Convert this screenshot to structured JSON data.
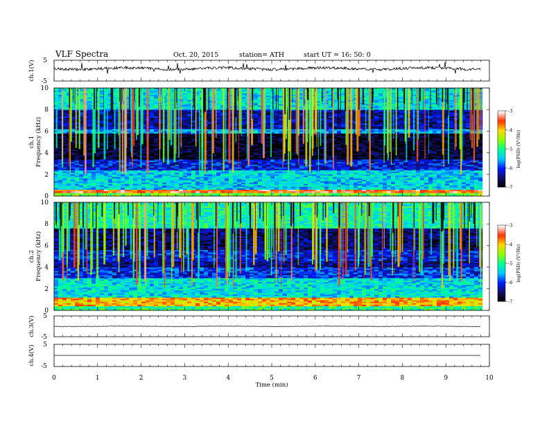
{
  "header": {
    "title": "VLF  Spectra",
    "date": "Oct. 20, 2015",
    "station": "station= ATH",
    "start_ut": "start  UT  =    16: 50: 0"
  },
  "chart_data": [
    {
      "type": "line",
      "panel": "ch1-waveform",
      "ylabel": "ch.1(V)",
      "x_range": [
        0,
        10
      ],
      "ylim": [
        -5,
        5
      ],
      "y_ticks": [
        "5",
        "-5"
      ],
      "trace": {
        "x": [
          0,
          9.8
        ],
        "baseline": 0,
        "amplitude": 0.8
      }
    },
    {
      "type": "heatmap",
      "panel": "ch1-spectrogram",
      "ylabel_top": "ch.1",
      "ylabel": "Frequency  (kHz)",
      "x_range": [
        0,
        10
      ],
      "data_x_range": [
        0,
        9.8
      ],
      "ylim": [
        0,
        10
      ],
      "y_ticks": [
        "0",
        "2",
        "4",
        "6",
        "8",
        "10"
      ],
      "colorbar_label": "log(PSD) (V²/Hz)",
      "colorbar_ticks": [
        "-3",
        "-4",
        "-5",
        "-6",
        "-7"
      ],
      "colorbar_range": [
        -7,
        -3
      ],
      "bands": [
        {
          "from": 0,
          "to": 0.3,
          "level": -4.6
        },
        {
          "from": 0.3,
          "to": 0.6,
          "level": -3.5
        },
        {
          "from": 0.6,
          "to": 2.4,
          "level": -5.4
        },
        {
          "from": 2.4,
          "to": 3.4,
          "level": -6.1
        },
        {
          "from": 3.4,
          "to": 5.8,
          "level": -6.8
        },
        {
          "from": 5.8,
          "to": 6.2,
          "level": -5.6
        },
        {
          "from": 6.2,
          "to": 8.0,
          "level": -6.3
        },
        {
          "from": 8.0,
          "to": 10,
          "level": -5.3
        }
      ]
    },
    {
      "type": "heatmap",
      "panel": "ch2-spectrogram",
      "ylabel_top": "ch.2",
      "ylabel": "Frequency  (kHz)",
      "x_range": [
        0,
        10
      ],
      "data_x_range": [
        0,
        9.8
      ],
      "ylim": [
        0,
        10
      ],
      "y_ticks": [
        "0",
        "2",
        "4",
        "6",
        "8",
        "10"
      ],
      "colorbar_label": "log(PSD) (V²/Hz)",
      "colorbar_ticks": [
        "-3",
        "-4",
        "-5",
        "-6",
        "-7"
      ],
      "colorbar_range": [
        -7,
        -3
      ],
      "bands": [
        {
          "from": 0,
          "to": 0.4,
          "level": -5.0
        },
        {
          "from": 0.4,
          "to": 1.2,
          "level": -3.9
        },
        {
          "from": 1.2,
          "to": 3.0,
          "level": -5.3
        },
        {
          "from": 3.0,
          "to": 4.0,
          "level": -6.0
        },
        {
          "from": 4.0,
          "to": 4.6,
          "level": -6.4
        },
        {
          "from": 4.6,
          "to": 5.6,
          "level": -6.1
        },
        {
          "from": 5.6,
          "to": 7.6,
          "level": -6.5
        },
        {
          "from": 7.6,
          "to": 10,
          "level": -5.1
        }
      ]
    },
    {
      "type": "line",
      "panel": "ch3-waveform",
      "ylabel": "ch.3(V)",
      "x_range": [
        0,
        10
      ],
      "ylim": [
        -5,
        5
      ],
      "y_ticks": [
        "5",
        "-5"
      ],
      "trace": {
        "x": [
          0,
          9.8
        ],
        "baseline": 0,
        "amplitude": 0.15
      }
    },
    {
      "type": "line",
      "panel": "ch4-waveform",
      "ylabel": "ch.4(V)",
      "x_range": [
        0,
        10
      ],
      "ylim": [
        -5,
        5
      ],
      "y_ticks": [
        "5",
        "-5"
      ],
      "trace": {
        "x": [
          0,
          9.8
        ],
        "baseline": 0,
        "amplitude": 0
      }
    }
  ],
  "x_axis": {
    "label": "Time  (min)",
    "ticks": [
      "0",
      "1",
      "2",
      "3",
      "4",
      "5",
      "6",
      "7",
      "8",
      "9",
      "10"
    ]
  },
  "colors": {
    "colormap": [
      "#000000",
      "#101060",
      "#0018ff",
      "#00c8ff",
      "#00ff96",
      "#90ff00",
      "#ffd800",
      "#ff3000",
      "#ffffff"
    ]
  }
}
